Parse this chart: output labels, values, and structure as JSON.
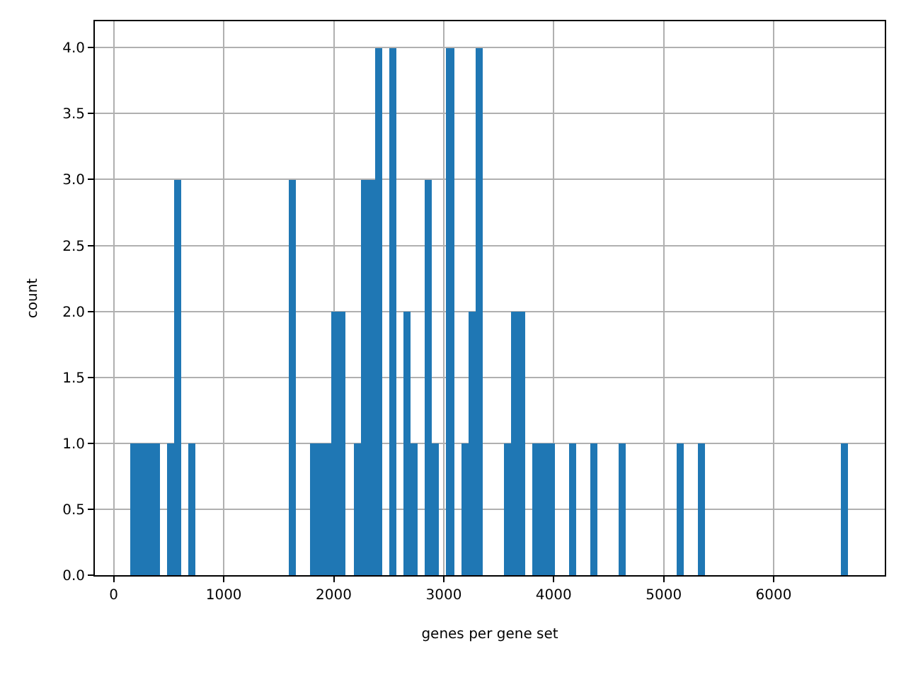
{
  "chart_data": {
    "type": "histogram",
    "xlabel": "genes per gene set",
    "ylabel": "count",
    "color": "#1f77b4",
    "bins": [
      154,
      219,
      285,
      350,
      415,
      480,
      546,
      611,
      676,
      741,
      807,
      872,
      937,
      1003,
      1068,
      1133,
      1198,
      1264,
      1329,
      1394,
      1459,
      1525,
      1590,
      1655,
      1720,
      1786,
      1851,
      1916,
      1982,
      2047,
      2112,
      2177,
      2243,
      2308,
      2373,
      2438,
      2504,
      2569,
      2634,
      2700,
      2765,
      2830,
      2895,
      2961,
      3026,
      3091,
      3156,
      3222,
      3287,
      3352,
      3418,
      3483,
      3548,
      3613,
      3679,
      3744,
      3809,
      3874,
      3940,
      4005,
      4070,
      4135,
      4201,
      4266,
      4331,
      4397,
      4462,
      4527,
      4592,
      4658,
      4723,
      4788,
      4853,
      4919,
      4984,
      5049,
      5115,
      5180,
      5245,
      5310,
      5376,
      5441,
      5506,
      5571,
      5637,
      5702,
      5767,
      5832,
      5898,
      5963,
      6028,
      6094,
      6159,
      6224,
      6289,
      6355,
      6420,
      6485,
      6550,
      6616,
      6681
    ],
    "values": [
      1,
      1,
      1,
      1,
      0,
      1,
      3,
      0,
      1,
      0,
      0,
      0,
      0,
      0,
      0,
      0,
      0,
      0,
      0,
      0,
      0,
      0,
      3,
      0,
      0,
      1,
      1,
      1,
      2,
      2,
      0,
      1,
      3,
      3,
      4,
      0,
      4,
      0,
      2,
      1,
      0,
      3,
      1,
      0,
      4,
      0,
      1,
      2,
      4,
      0,
      0,
      0,
      1,
      2,
      2,
      0,
      1,
      1,
      1,
      0,
      0,
      1,
      0,
      0,
      1,
      0,
      0,
      0,
      1,
      0,
      0,
      0,
      0,
      0,
      0,
      0,
      1,
      0,
      0,
      1,
      0,
      0,
      0,
      0,
      0,
      0,
      0,
      0,
      0,
      0,
      0,
      0,
      0,
      0,
      0,
      0,
      0,
      0,
      0,
      1
    ],
    "xlim": [
      -172,
      7010
    ],
    "xticks": [
      0,
      1000,
      2000,
      3000,
      4000,
      5000,
      6000
    ],
    "ylim": [
      0,
      4.2
    ],
    "yticks": [
      {
        "value": 0,
        "label": "0.0"
      },
      {
        "value": 0.5,
        "label": "0.5"
      },
      {
        "value": 1,
        "label": "1.0"
      },
      {
        "value": 1.5,
        "label": "1.5"
      },
      {
        "value": 2,
        "label": "2.0"
      },
      {
        "value": 2.5,
        "label": "2.5"
      },
      {
        "value": 3,
        "label": "3.0"
      },
      {
        "value": 3.5,
        "label": "3.5"
      },
      {
        "value": 4,
        "label": "4.0"
      }
    ],
    "grid": true
  }
}
